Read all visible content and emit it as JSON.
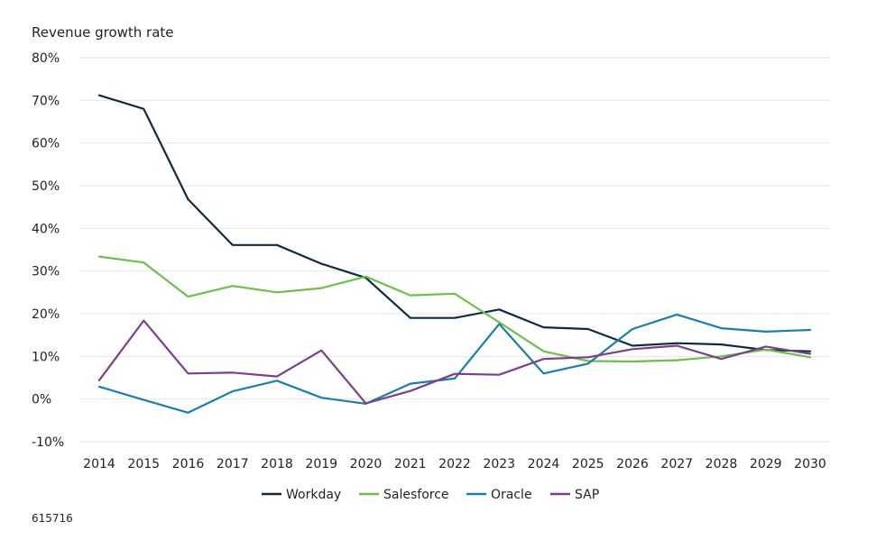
{
  "chart_data": {
    "type": "line",
    "title": "",
    "ylabel": "Revenue growth rate",
    "xlabel": "",
    "ylim": [
      -10,
      80
    ],
    "yticks": [
      -10,
      0,
      10,
      20,
      30,
      40,
      50,
      60,
      70,
      80
    ],
    "ytick_labels": [
      "-10%",
      "0%",
      "10%",
      "20%",
      "30%",
      "40%",
      "50%",
      "60%",
      "70%",
      "80%"
    ],
    "grid": true,
    "legend_position": "bottom-center",
    "categories": [
      "2014",
      "2015",
      "2016",
      "2017",
      "2018",
      "2019",
      "2020",
      "2021",
      "2022",
      "2023",
      "2024",
      "2025",
      "2026",
      "2027",
      "2028",
      "2029",
      "2030"
    ],
    "series": [
      {
        "name": "Workday",
        "color": "#0f2a44",
        "values": [
          71.2,
          68.0,
          46.8,
          36.1,
          36.1,
          31.7,
          28.4,
          19.0,
          19.0,
          21.0,
          16.8,
          16.4,
          12.5,
          13.1,
          12.8,
          11.5,
          11.2
        ]
      },
      {
        "name": "Salesforce",
        "color": "#6cc04a",
        "values": [
          33.4,
          32.0,
          24.0,
          26.5,
          25.0,
          26.0,
          28.7,
          24.3,
          24.7,
          18.0,
          11.2,
          8.9,
          8.8,
          9.1,
          10.0,
          11.6,
          9.8
        ]
      },
      {
        "name": "Oracle",
        "color": "#1a7fa8",
        "values": [
          2.9,
          -0.2,
          -3.2,
          1.8,
          4.3,
          0.3,
          -1.1,
          3.6,
          4.8,
          17.6,
          6.0,
          8.3,
          16.4,
          19.8,
          16.6,
          15.8,
          16.2
        ]
      },
      {
        "name": "SAP",
        "color": "#7b3f8c",
        "values": [
          4.4,
          18.4,
          6.0,
          6.2,
          5.3,
          11.4,
          -1.0,
          1.9,
          5.9,
          5.7,
          9.4,
          9.8,
          11.7,
          12.5,
          9.4,
          12.3,
          10.6
        ]
      }
    ]
  },
  "footnote": "615716"
}
